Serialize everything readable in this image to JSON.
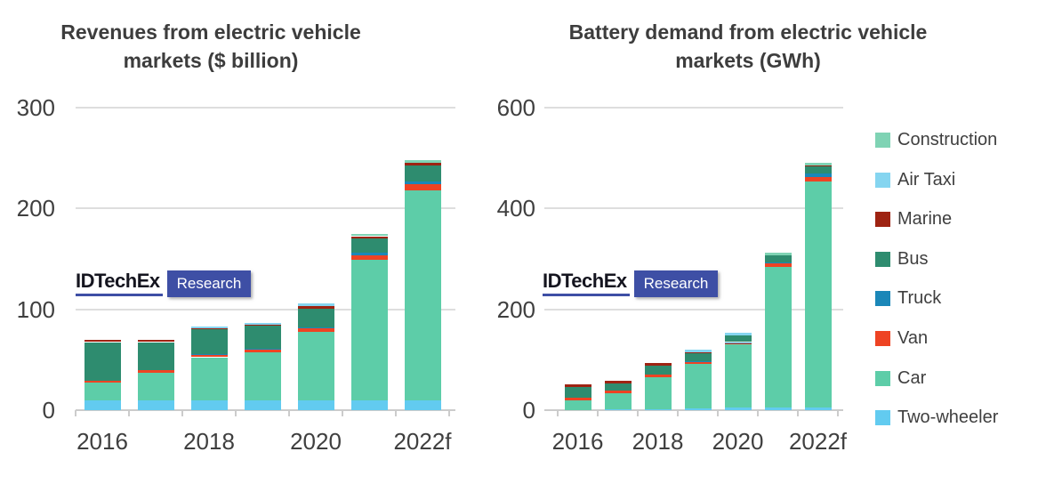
{
  "logo": {
    "brand": "IDTechEx",
    "sub": "Research",
    "accent": "#3e4fa5"
  },
  "colors": {
    "background": "#ffffff",
    "title_text": "#3d3d3d",
    "tick_text": "#3f3f3f",
    "gridline": "#dedede",
    "two_wheeler": "#62CBF0",
    "car": "#5DCDA8",
    "van": "#EE4323",
    "truck": "#1B87B8",
    "bus": "#2E8C6F",
    "marine": "#9E2312",
    "air_taxi": "#85D5F0",
    "construction": "#7FD3B4"
  },
  "legend_order_top_to_bottom": [
    "Construction",
    "Air Taxi",
    "Marine",
    "Bus",
    "Truck",
    "Van",
    "Car",
    "Two-wheeler"
  ],
  "chart_data": [
    {
      "type": "bar",
      "stacked": true,
      "title": "Revenues from electric vehicle markets ($ billion)",
      "title_lines": [
        "Revenues from electric vehicle",
        "markets ($ billion)"
      ],
      "categories": [
        "2016",
        "2017",
        "2018",
        "2019",
        "2020",
        "2021",
        "2022f"
      ],
      "x_tick_labels": [
        "2016",
        "2018",
        "2020",
        "2022f"
      ],
      "xlabel": "",
      "ylabel": "",
      "ylim": [
        0,
        300
      ],
      "yticks": [
        0,
        100,
        200,
        300
      ],
      "grid": true,
      "legend_position": "right-shared",
      "series": [
        {
          "name": "Two-wheeler",
          "color": "#62CBF0",
          "values": [
            10,
            10,
            9.5,
            9.5,
            10,
            10,
            10
          ]
        },
        {
          "name": "Car",
          "color": "#5DCDA8",
          "values": [
            17,
            27,
            43,
            48,
            68,
            139,
            208
          ]
        },
        {
          "name": "Van",
          "color": "#EE4323",
          "values": [
            2.5,
            2.5,
            2.5,
            2.5,
            3,
            4.5,
            6
          ]
        },
        {
          "name": "Truck",
          "color": "#1B87B8",
          "values": [
            0,
            0,
            1,
            1,
            1,
            2.5,
            2.5
          ]
        },
        {
          "name": "Bus",
          "color": "#2E8C6F",
          "values": [
            38,
            28,
            24,
            23,
            19,
            14,
            16
          ]
        },
        {
          "name": "Marine",
          "color": "#9E2312",
          "values": [
            2,
            2,
            1,
            1,
            2,
            2.5,
            3
          ]
        },
        {
          "name": "Air Taxi",
          "color": "#85D5F0",
          "values": [
            0,
            0,
            2,
            1.5,
            2.5,
            0,
            0
          ]
        },
        {
          "name": "Construction",
          "color": "#7FD3B4",
          "values": [
            0,
            0,
            0,
            0,
            0,
            2.5,
            2.5
          ]
        }
      ],
      "totals_approx": [
        69.5,
        69.5,
        83,
        86.5,
        105.5,
        175,
        248
      ]
    },
    {
      "type": "bar",
      "stacked": true,
      "title": "Battery demand from electric vehicle markets (GWh)",
      "title_lines": [
        "Battery demand from electric vehicle",
        "markets (GWh)"
      ],
      "categories": [
        "2016",
        "2017",
        "2018",
        "2019",
        "2020",
        "2021",
        "2022f"
      ],
      "x_tick_labels": [
        "2016",
        "2018",
        "2020",
        "2022f"
      ],
      "xlabel": "",
      "ylabel": "",
      "ylim": [
        0,
        600
      ],
      "yticks": [
        0,
        200,
        400,
        600
      ],
      "grid": true,
      "legend_position": "right-shared",
      "series": [
        {
          "name": "Two-wheeler",
          "color": "#62CBF0",
          "values": [
            0.5,
            1,
            1.5,
            3.5,
            4.5,
            4.5,
            6
          ]
        },
        {
          "name": "Car",
          "color": "#5DCDA8",
          "values": [
            20,
            33,
            64,
            88,
            126,
            280,
            447
          ]
        },
        {
          "name": "Van",
          "color": "#EE4323",
          "values": [
            4.5,
            4.5,
            5,
            4.5,
            3.5,
            7,
            9
          ]
        },
        {
          "name": "Truck",
          "color": "#1B87B8",
          "values": [
            0,
            0,
            0,
            1,
            1,
            2,
            7
          ]
        },
        {
          "name": "Bus",
          "color": "#2E8C6F",
          "values": [
            21,
            15,
            18,
            15.5,
            13.5,
            14,
            15
          ]
        },
        {
          "name": "Marine",
          "color": "#9E2312",
          "values": [
            5,
            5,
            5,
            2,
            0,
            0,
            1
          ]
        },
        {
          "name": "Air Taxi",
          "color": "#85D5F0",
          "values": [
            0,
            0,
            0,
            5,
            5,
            0,
            0
          ]
        },
        {
          "name": "Construction",
          "color": "#7FD3B4",
          "values": [
            0,
            0,
            0,
            0,
            0,
            4.5,
            5
          ]
        }
      ],
      "totals_approx": [
        51,
        58.5,
        93.5,
        119.5,
        153.5,
        312,
        490
      ]
    }
  ]
}
